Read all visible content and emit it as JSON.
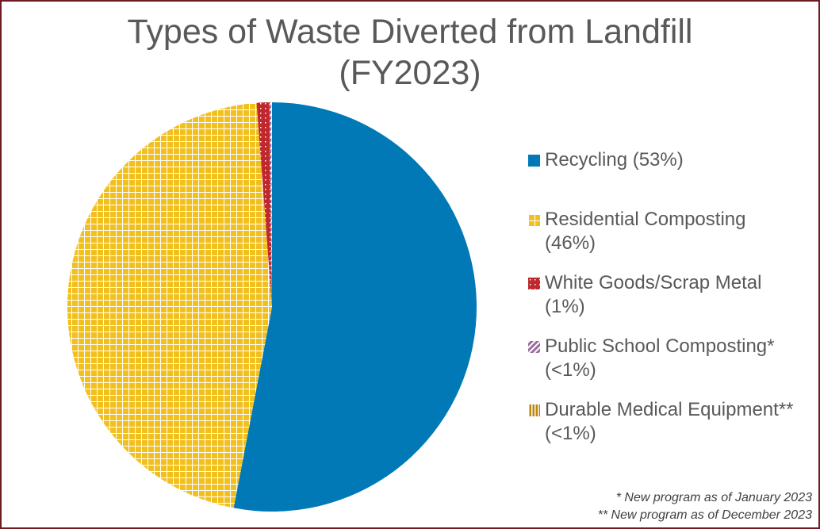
{
  "chart_data": {
    "type": "pie",
    "title": "Types of Waste Diverted from Landfill",
    "subtitle": "(FY2023)",
    "slices": [
      {
        "name": "Recycling",
        "label": "Recycling (53%)",
        "value": 53,
        "color": "#0079b6",
        "pattern": "solid"
      },
      {
        "name": "Residential Composting",
        "label": "Residential Composting (46%)",
        "value": 45.8,
        "color": "#f2c01e",
        "pattern": "grid"
      },
      {
        "name": "White Goods/Scrap Metal",
        "label": "White Goods/Scrap Metal (1%)",
        "value": 1.0,
        "color": "#c0282d",
        "pattern": "dots"
      },
      {
        "name": "Public School Composting*",
        "label": "Public School Composting* (<1%)",
        "value": 0.15,
        "color": "#9b6ba0",
        "pattern": "diagonal"
      },
      {
        "name": "Durable Medical Equipment**",
        "label": "Durable Medical Equipment** (<1%)",
        "value": 0.05,
        "color": "#b8860b",
        "pattern": "vertical"
      }
    ],
    "legend_placement": "right",
    "footnotes": [
      "* New program as of January 2023",
      "** New program as of December 2023"
    ]
  }
}
